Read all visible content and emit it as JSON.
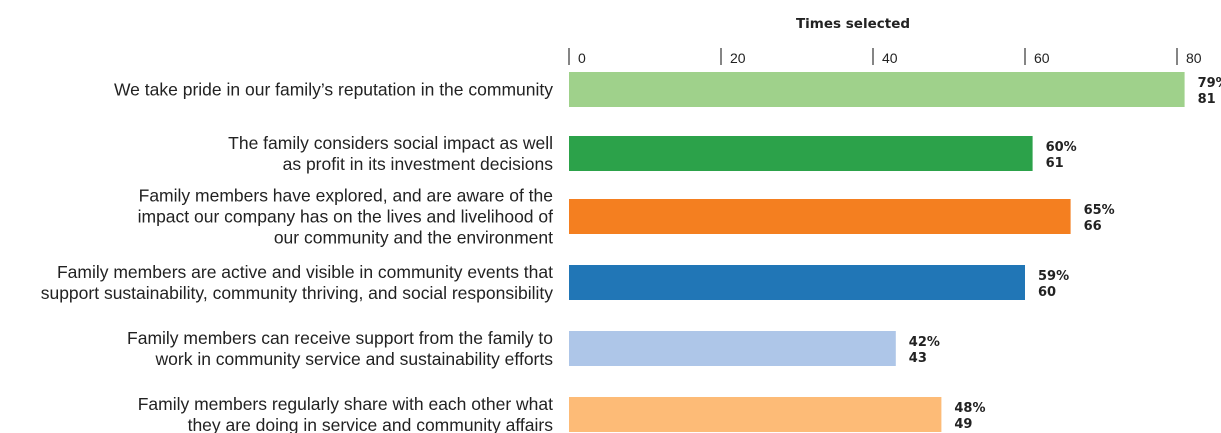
{
  "chart_data": {
    "type": "bar",
    "orientation": "horizontal",
    "xlabel": "Times selected",
    "xlim": [
      0,
      80
    ],
    "xticks": [
      0,
      20,
      40,
      60,
      80
    ],
    "grid": false,
    "categories": [
      [
        "We take pride in our family’s reputation in the community"
      ],
      [
        "The family considers social impact as well",
        "as profit in its investment decisions"
      ],
      [
        "Family members have explored, and are aware of the",
        "impact our company has on the lives and livelihood of",
        "our community and the environment"
      ],
      [
        "Family members are active and visible in community events that",
        "support sustainability, community thriving, and social responsibility"
      ],
      [
        "Family members can receive support from the family to",
        "work in community service and sustainability efforts"
      ],
      [
        "Family members regularly share with each other what",
        "they are doing in service and community affairs"
      ]
    ],
    "values": [
      81,
      61,
      66,
      60,
      43,
      49
    ],
    "percent_labels": [
      "79%",
      "60%",
      "65%",
      "59%",
      "42%",
      "48%"
    ],
    "count_labels": [
      "81",
      "61",
      "66",
      "60",
      "43",
      "49"
    ],
    "colors": [
      "#9fd18b",
      "#2ca24a",
      "#f47f20",
      "#2176b6",
      "#aec6e8",
      "#fdbb77"
    ]
  }
}
